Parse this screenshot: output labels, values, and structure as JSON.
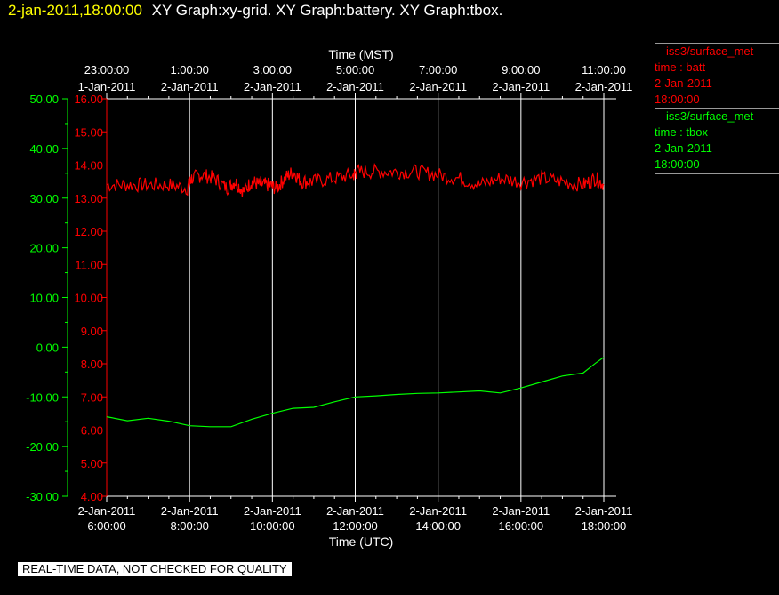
{
  "header": {
    "timestamp": "2-jan-2011,18:00:00",
    "graphs": "XY Graph:xy-grid.  XY Graph:battery.  XY Graph:tbox."
  },
  "legend": [
    {
      "line1": "—iss3/surface_met",
      "line2": "time : batt",
      "line3": "2-Jan-2011",
      "line4": "18:00:00",
      "color": "#ff0000"
    },
    {
      "line1": "—iss3/surface_met",
      "line2": "time : tbox",
      "line3": "2-Jan-2011",
      "line4": "18:00:00",
      "color": "#00ff00"
    }
  ],
  "disclaimer": "REAL-TIME DATA, NOT CHECKED FOR QUALITY",
  "chart_data": {
    "type": "line",
    "grid": "vertical",
    "x_top_label": "Time (MST)",
    "x_bottom_label": "Time (UTC)",
    "x_range_hours_utc": [
      6,
      18
    ],
    "x_ticks_top": [
      {
        "t1": "23:00:00",
        "t2": "1-Jan-2011"
      },
      {
        "t1": "1:00:00",
        "t2": "2-Jan-2011"
      },
      {
        "t1": "3:00:00",
        "t2": "2-Jan-2011"
      },
      {
        "t1": "5:00:00",
        "t2": "2-Jan-2011"
      },
      {
        "t1": "7:00:00",
        "t2": "2-Jan-2011"
      },
      {
        "t1": "9:00:00",
        "t2": "2-Jan-2011"
      },
      {
        "t1": "11:00:00",
        "t2": "2-Jan-2011"
      }
    ],
    "x_ticks_bottom": [
      {
        "t1": "2-Jan-2011",
        "t2": "6:00:00"
      },
      {
        "t1": "2-Jan-2011",
        "t2": "8:00:00"
      },
      {
        "t1": "2-Jan-2011",
        "t2": "10:00:00"
      },
      {
        "t1": "2-Jan-2011",
        "t2": "12:00:00"
      },
      {
        "t1": "2-Jan-2011",
        "t2": "14:00:00"
      },
      {
        "t1": "2-Jan-2011",
        "t2": "16:00:00"
      },
      {
        "t1": "2-Jan-2011",
        "t2": "18:00:00"
      }
    ],
    "y_left_ticks": [
      "50.00",
      "40.00",
      "30.00",
      "20.00",
      "10.00",
      "0.00",
      "-10.00",
      "-20.00",
      "-30.00"
    ],
    "y_left_range": [
      -30,
      50
    ],
    "y_left_color": "#00ff00",
    "y_right_ticks": [
      "16.00",
      "15.00",
      "14.00",
      "13.00",
      "12.00",
      "11.00",
      "10.00",
      "9.00",
      "8.00",
      "7.00",
      "6.00",
      "5.00",
      "4.00"
    ],
    "y_right_range": [
      4,
      16
    ],
    "y_right_color": "#ff0000",
    "series": [
      {
        "axis": "red",
        "color": "#ff0000",
        "x": [
          6.0,
          6.5,
          7.0,
          7.5,
          7.95,
          8.05,
          8.3,
          8.6,
          8.9,
          9.1,
          9.3,
          9.5,
          9.7,
          9.9,
          10.1,
          10.3,
          10.5,
          10.7,
          11.0,
          11.5,
          11.95,
          12.05,
          12.5,
          13.0,
          13.5,
          14.0,
          14.5,
          15.0,
          15.5,
          16.0,
          16.5,
          17.0,
          17.5,
          17.8,
          18.0
        ],
        "y": [
          13.4,
          13.4,
          13.4,
          13.4,
          13.3,
          13.6,
          13.7,
          13.6,
          13.3,
          13.5,
          13.2,
          13.5,
          13.4,
          13.4,
          13.3,
          13.6,
          13.8,
          13.5,
          13.5,
          13.6,
          13.7,
          13.8,
          13.8,
          13.8,
          13.8,
          13.7,
          13.6,
          13.4,
          13.6,
          13.5,
          13.6,
          13.5,
          13.4,
          13.6,
          13.4
        ]
      },
      {
        "axis": "green",
        "color": "#00ff00",
        "x": [
          6.0,
          6.5,
          7.0,
          7.5,
          8.0,
          8.5,
          9.0,
          9.5,
          10.0,
          10.5,
          11.0,
          11.5,
          12.0,
          12.5,
          13.0,
          13.5,
          14.0,
          14.5,
          15.0,
          15.5,
          16.0,
          16.5,
          17.0,
          17.5,
          17.8,
          18.0
        ],
        "y": [
          -14.0,
          -14.8,
          -14.3,
          -14.9,
          -15.8,
          -16.0,
          -16.0,
          -14.5,
          -13.3,
          -12.3,
          -12.1,
          -11.0,
          -10.0,
          -9.8,
          -9.5,
          -9.3,
          -9.2,
          -9.0,
          -8.8,
          -9.2,
          -8.2,
          -7.0,
          -5.8,
          -5.2,
          -3.2,
          -2.0
        ]
      }
    ]
  }
}
